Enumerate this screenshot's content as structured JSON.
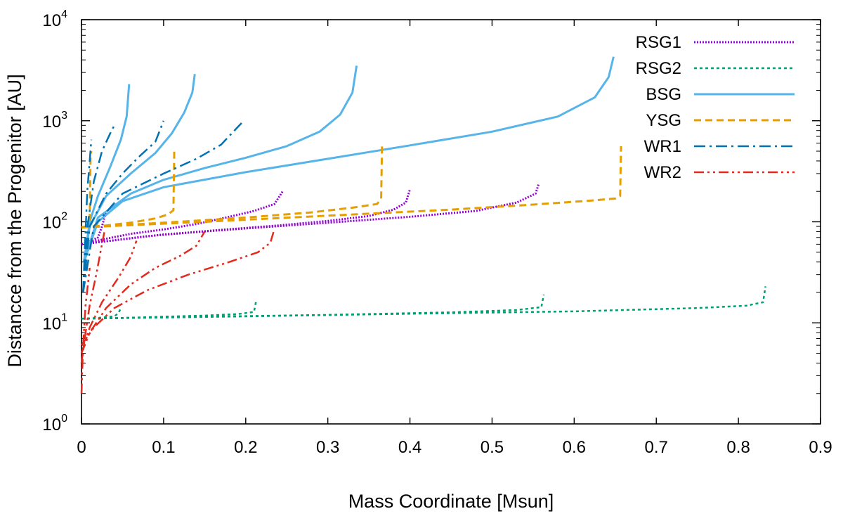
{
  "chart_data": {
    "type": "line",
    "title": "",
    "xlabel": "Mass Coordinate [Msun]",
    "ylabel": "Distancce from the Progenitor [AU]",
    "xlim": [
      0,
      0.9
    ],
    "ylim": [
      1,
      10000
    ],
    "yscale": "log",
    "grid": false,
    "legend_position": "top-right",
    "xticks": [
      "0",
      "0.1",
      "0.2",
      "0.3",
      "0.4",
      "0.5",
      "0.6",
      "0.7",
      "0.8",
      "0.9"
    ],
    "yticks": [
      {
        "base": "10",
        "exp": "0",
        "value": 1
      },
      {
        "base": "10",
        "exp": "1",
        "value": 10
      },
      {
        "base": "10",
        "exp": "2",
        "value": 100
      },
      {
        "base": "10",
        "exp": "3",
        "value": 1000
      },
      {
        "base": "10",
        "exp": "4",
        "value": 10000
      }
    ],
    "series": [
      {
        "name": "RSG1",
        "color": "#9400d3",
        "dash": "2,2",
        "width": 3,
        "curves": [
          [
            [
              0,
              60
            ],
            [
              0.01,
              64
            ],
            [
              0.02,
              70
            ],
            [
              0.025,
              90
            ],
            [
              0.028,
              110
            ],
            [
              0.03,
              125
            ]
          ],
          [
            [
              0,
              60
            ],
            [
              0.03,
              68
            ],
            [
              0.06,
              76
            ],
            [
              0.1,
              84
            ],
            [
              0.14,
              95
            ],
            [
              0.18,
              112
            ],
            [
              0.21,
              128
            ],
            [
              0.235,
              150
            ],
            [
              0.245,
              200
            ]
          ],
          [
            [
              0,
              60
            ],
            [
              0.08,
              72
            ],
            [
              0.16,
              82
            ],
            [
              0.24,
              92
            ],
            [
              0.3,
              102
            ],
            [
              0.35,
              114
            ],
            [
              0.38,
              132
            ],
            [
              0.395,
              155
            ],
            [
              0.4,
              210
            ]
          ],
          [
            [
              0,
              60
            ],
            [
              0.1,
              75
            ],
            [
              0.2,
              86
            ],
            [
              0.3,
              98
            ],
            [
              0.4,
              112
            ],
            [
              0.48,
              128
            ],
            [
              0.53,
              155
            ],
            [
              0.553,
              190
            ],
            [
              0.557,
              240
            ]
          ]
        ]
      },
      {
        "name": "RSG2",
        "color": "#009e73",
        "dash": "4,4",
        "width": 2.5,
        "curves": [
          [
            [
              0,
              11
            ],
            [
              0.02,
              11.2
            ],
            [
              0.04,
              11.6
            ],
            [
              0.045,
              12.5
            ],
            [
              0.048,
              14
            ]
          ],
          [
            [
              0,
              11
            ],
            [
              0.05,
              11.2
            ],
            [
              0.1,
              11.5
            ],
            [
              0.15,
              11.8
            ],
            [
              0.19,
              12.2
            ],
            [
              0.21,
              12.8
            ],
            [
              0.213,
              17
            ]
          ],
          [
            [
              0,
              11
            ],
            [
              0.15,
              11.5
            ],
            [
              0.3,
              12
            ],
            [
              0.45,
              12.7
            ],
            [
              0.53,
              13.4
            ],
            [
              0.56,
              14.3
            ],
            [
              0.563,
              19
            ]
          ],
          [
            [
              0,
              11
            ],
            [
              0.2,
              11.6
            ],
            [
              0.4,
              12.3
            ],
            [
              0.6,
              13
            ],
            [
              0.75,
              14
            ],
            [
              0.81,
              14.8
            ],
            [
              0.83,
              16
            ],
            [
              0.833,
              23
            ]
          ]
        ]
      },
      {
        "name": "BSG",
        "color": "#56b4e9",
        "dash": "",
        "width": 3,
        "curves": [
          [
            [
              0.003,
              40
            ],
            [
              0.01,
              100
            ],
            [
              0.02,
              180
            ],
            [
              0.035,
              350
            ],
            [
              0.048,
              650
            ],
            [
              0.055,
              1100
            ],
            [
              0.058,
              2300
            ]
          ],
          [
            [
              0.003,
              40
            ],
            [
              0.01,
              90
            ],
            [
              0.03,
              180
            ],
            [
              0.06,
              300
            ],
            [
              0.09,
              480
            ],
            [
              0.11,
              750
            ],
            [
              0.125,
              1200
            ],
            [
              0.135,
              1900
            ],
            [
              0.138,
              2900
            ]
          ],
          [
            [
              0.003,
              40
            ],
            [
              0.02,
              110
            ],
            [
              0.06,
              190
            ],
            [
              0.1,
              260
            ],
            [
              0.15,
              340
            ],
            [
              0.2,
              430
            ],
            [
              0.25,
              560
            ],
            [
              0.29,
              780
            ],
            [
              0.315,
              1150
            ],
            [
              0.33,
              1900
            ],
            [
              0.335,
              3500
            ]
          ],
          [
            [
              0.003,
              40
            ],
            [
              0.02,
              100
            ],
            [
              0.05,
              160
            ],
            [
              0.1,
              220
            ],
            [
              0.2,
              310
            ],
            [
              0.3,
              420
            ],
            [
              0.4,
              570
            ],
            [
              0.5,
              780
            ],
            [
              0.58,
              1100
            ],
            [
              0.625,
              1700
            ],
            [
              0.642,
              2700
            ],
            [
              0.648,
              4300
            ]
          ]
        ]
      },
      {
        "name": "YSG",
        "color": "#e69f00",
        "dash": "10,6",
        "width": 3,
        "curves": [
          [
            [
              0,
              88
            ],
            [
              0.005,
              90
            ],
            [
              0.01,
              100
            ],
            [
              0.011,
              450
            ],
            [
              0.012,
              500
            ]
          ],
          [
            [
              0,
              88
            ],
            [
              0.03,
              92
            ],
            [
              0.06,
              98
            ],
            [
              0.09,
              108
            ],
            [
              0.105,
              118
            ],
            [
              0.112,
              130
            ],
            [
              0.113,
              530
            ]
          ],
          [
            [
              0,
              88
            ],
            [
              0.1,
              98
            ],
            [
              0.2,
              110
            ],
            [
              0.28,
              124
            ],
            [
              0.33,
              138
            ],
            [
              0.36,
              150
            ],
            [
              0.365,
              170
            ],
            [
              0.366,
              580
            ]
          ],
          [
            [
              0,
              88
            ],
            [
              0.15,
              100
            ],
            [
              0.3,
              115
            ],
            [
              0.45,
              132
            ],
            [
              0.55,
              148
            ],
            [
              0.62,
              162
            ],
            [
              0.65,
              170
            ],
            [
              0.656,
              180
            ],
            [
              0.657,
              560
            ]
          ]
        ]
      },
      {
        "name": "WR1",
        "color": "#0072b2",
        "dash": "16,6,3,6",
        "width": 2.5,
        "curves": [
          [
            [
              0.002,
              20
            ],
            [
              0.005,
              80
            ],
            [
              0.007,
              200
            ],
            [
              0.01,
              400
            ],
            [
              0.012,
              650
            ]
          ],
          [
            [
              0.002,
              20
            ],
            [
              0.008,
              100
            ],
            [
              0.015,
              250
            ],
            [
              0.025,
              500
            ],
            [
              0.035,
              750
            ],
            [
              0.04,
              900
            ]
          ],
          [
            [
              0.002,
              20
            ],
            [
              0.01,
              90
            ],
            [
              0.03,
              190
            ],
            [
              0.05,
              300
            ],
            [
              0.07,
              440
            ],
            [
              0.09,
              620
            ],
            [
              0.1,
              1000
            ]
          ],
          [
            [
              0.002,
              20
            ],
            [
              0.015,
              90
            ],
            [
              0.05,
              190
            ],
            [
              0.1,
              300
            ],
            [
              0.14,
              420
            ],
            [
              0.17,
              580
            ],
            [
              0.185,
              780
            ],
            [
              0.195,
              950
            ]
          ]
        ]
      },
      {
        "name": "WR2",
        "color": "#e32a1f",
        "dash": "14,5,3,5,3,5",
        "width": 2.5,
        "curves": [
          [
            [
              0,
              2
            ],
            [
              0.002,
              6
            ],
            [
              0.005,
              15
            ],
            [
              0.008,
              25
            ],
            [
              0.01,
              35
            ]
          ],
          [
            [
              0,
              4
            ],
            [
              0.005,
              8
            ],
            [
              0.01,
              15
            ],
            [
              0.018,
              30
            ],
            [
              0.024,
              55
            ],
            [
              0.028,
              80
            ]
          ],
          [
            [
              0,
              5
            ],
            [
              0.01,
              9
            ],
            [
              0.025,
              16
            ],
            [
              0.045,
              28
            ],
            [
              0.06,
              45
            ],
            [
              0.067,
              65
            ]
          ],
          [
            [
              0,
              5
            ],
            [
              0.01,
              8
            ],
            [
              0.03,
              14
            ],
            [
              0.06,
              24
            ],
            [
              0.09,
              35
            ],
            [
              0.12,
              46
            ],
            [
              0.14,
              58
            ],
            [
              0.15,
              80
            ]
          ],
          [
            [
              0,
              6
            ],
            [
              0.015,
              9
            ],
            [
              0.04,
              14
            ],
            [
              0.08,
              21
            ],
            [
              0.13,
              30
            ],
            [
              0.18,
              40
            ],
            [
              0.215,
              50
            ],
            [
              0.23,
              62
            ],
            [
              0.235,
              85
            ]
          ]
        ]
      }
    ]
  }
}
